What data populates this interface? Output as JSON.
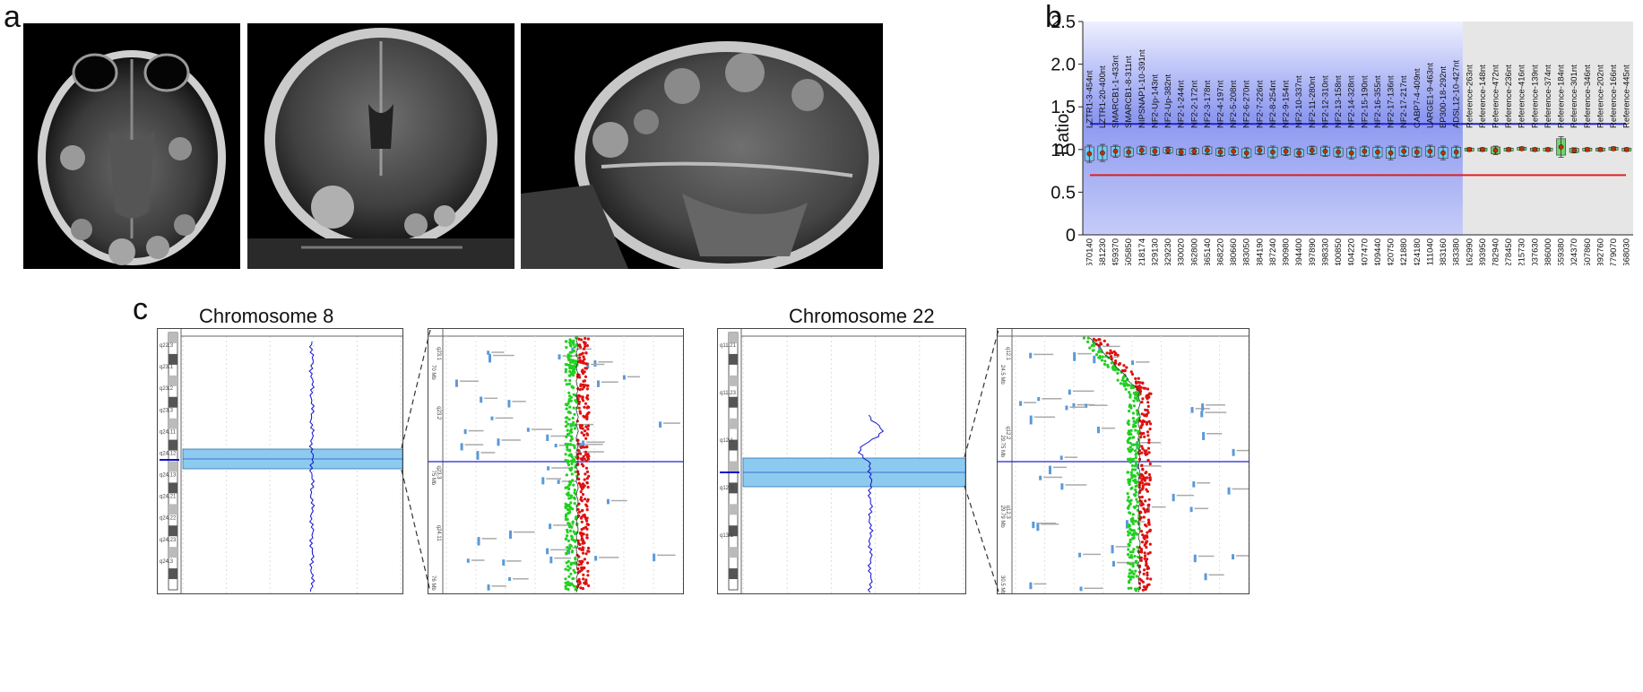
{
  "panels": {
    "a": "a",
    "b": "b",
    "c": "c"
  },
  "chart_data": {
    "type": "bar",
    "ylabel": "Ratio",
    "ylim": [
      0,
      2.5
    ],
    "yticks": [
      "0",
      "0.5",
      "1.0",
      "1.5",
      "2.0",
      "2.5"
    ],
    "upper_threshold": 1.3,
    "lower_threshold": 0.7,
    "probes": [
      "LZTR1-3-454nt",
      "LZTR1-20-400nt",
      "SMARCB1-1-433nt",
      "SMARCB1-8-311nt",
      "NIPSNAP1-10-391nt",
      "NF2-Up-143nt",
      "NF2-Up-382nt",
      "NF2-1-244nt",
      "NF2-2-172nt",
      "NF2-3-178nt",
      "NF2-4-197nt",
      "NF2-5-208nt",
      "NF2-6-270nt",
      "NF2-7-226nt",
      "NF2-8-254nt",
      "NF2-9-154nt",
      "NF2-10-337nt",
      "NF2-11-280nt",
      "NF2-12-310nt",
      "NF2-13-158nt",
      "NF2-14-328nt",
      "NF2-15-190nt",
      "NF2-16-355nt",
      "NF2-17-136nt",
      "NF2-17-217nt",
      "CABP7-4-409nt",
      "LARGE1-9-463nt",
      "EP300-18-292nt",
      "ADSL12-10-427nt",
      "Reference-263nt",
      "Reference-148nt",
      "Reference-472nt",
      "Reference-236nt",
      "Reference-416nt",
      "Reference-139nt",
      "Reference-374nt",
      "Reference-184nt",
      "Reference-301nt",
      "Reference-346nt",
      "Reference-202nt",
      "Reference-166nt",
      "Reference-445nt"
    ],
    "positions": [
      "22-019,670140",
      "22-019,681230",
      "22-022,459370",
      "22-022,505850",
      "22-028,218174",
      "22-028,329130",
      "22-028,329230",
      "22-028,330020",
      "22-028,362800",
      "22-028,365140",
      "22-028,368220",
      "22-028,380660",
      "22-028,383050",
      "22-028,384190",
      "22-028,387240",
      "22-028,390980",
      "22-028,394400",
      "22-028,397890",
      "22-028,398330",
      "22-028,400850",
      "22-028,404220",
      "22-028,407470",
      "22-028,409440",
      "22-028,420750",
      "22-028,421880",
      "22-028,424180",
      "22-032,111040",
      "22-039,883160",
      "22-048,683380",
      "02-071,162990",
      "02-108,893950",
      "03-099,782940",
      "04-042,278450",
      "04-089,215730",
      "05-132,037630",
      "06-051,886000",
      "09-093,559380",
      "12-014,024370",
      "15-046,507860",
      "16-031,392760",
      "19-012,779070",
      "21-014,668030"
    ],
    "values": [
      0.95,
      0.96,
      0.98,
      0.97,
      0.99,
      0.98,
      0.99,
      0.97,
      0.98,
      0.99,
      0.97,
      0.98,
      0.96,
      0.99,
      0.97,
      0.98,
      0.96,
      0.99,
      0.98,
      0.97,
      0.96,
      0.98,
      0.97,
      0.96,
      0.98,
      0.97,
      0.98,
      0.96,
      0.97,
      1.0,
      1.0,
      0.99,
      1.0,
      1.01,
      1.0,
      1.0,
      1.03,
      0.99,
      1.0,
      1.0,
      1.01,
      1.0
    ],
    "errors": [
      0.1,
      0.1,
      0.07,
      0.06,
      0.05,
      0.05,
      0.04,
      0.04,
      0.04,
      0.05,
      0.05,
      0.05,
      0.06,
      0.05,
      0.07,
      0.05,
      0.05,
      0.05,
      0.06,
      0.06,
      0.07,
      0.06,
      0.07,
      0.08,
      0.06,
      0.06,
      0.07,
      0.08,
      0.07,
      0.02,
      0.02,
      0.05,
      0.02,
      0.02,
      0.02,
      0.02,
      0.12,
      0.03,
      0.02,
      0.02,
      0.02,
      0.02
    ],
    "groups": [
      {
        "probes": 29,
        "color": "#aab4f4"
      },
      {
        "probes": 13,
        "color": "#e6e6e6"
      }
    ]
  },
  "chromosomes": [
    {
      "title": "Chromosome 8",
      "bands": [
        "q22.3",
        "q23.1",
        "q23.2",
        "q23.3",
        "q24.11",
        "q24.12",
        "q24.13",
        "q24.21",
        "q24.22",
        "q24.23",
        "q24.3"
      ],
      "zoom_ticks": [
        "q23.1",
        "q23.2",
        "q23.3",
        "q24.11"
      ],
      "zoom_scale": [
        "70 Mb",
        "75 Mb",
        "76 Mb"
      ]
    },
    {
      "title": "Chromosome 22",
      "bands": [
        "q11.21",
        "q11.23",
        "q12.1",
        "q12.3",
        "q13.1"
      ],
      "zoom_ticks": [
        "q12.1",
        "q12.2",
        "q12.3"
      ],
      "zoom_scale": [
        "24.5 Mb",
        "29.75 Mb",
        "29.79 Mb",
        "30.5 Mb"
      ]
    }
  ]
}
